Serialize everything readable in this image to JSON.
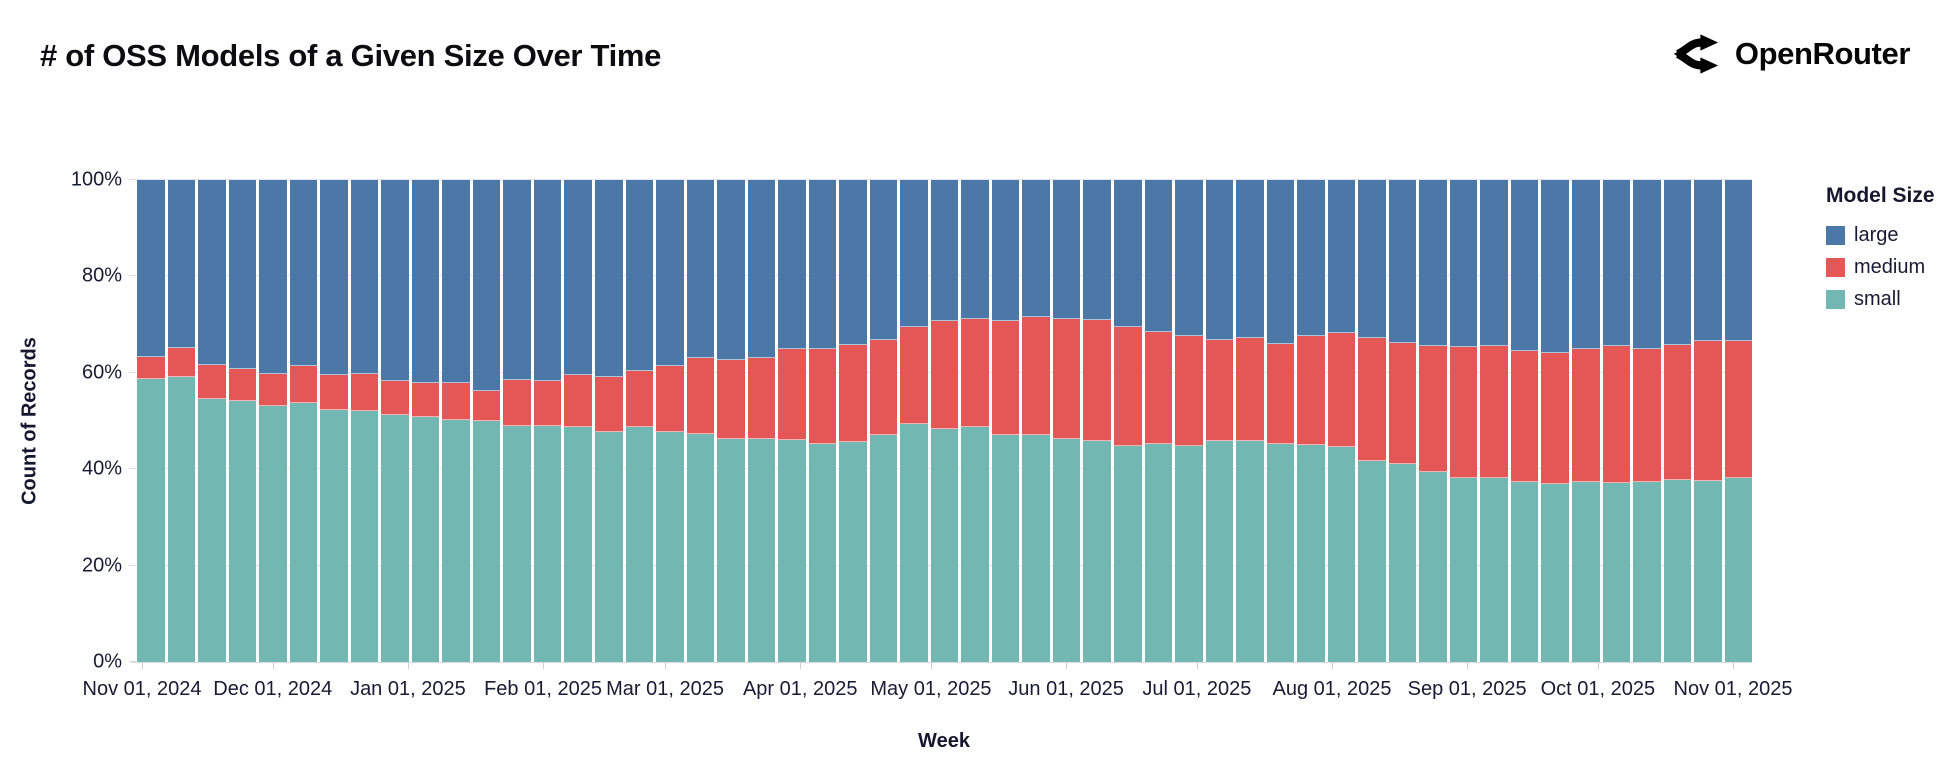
{
  "header": {
    "title": "# of OSS Models of a Given Size Over Time",
    "brand": "OpenRouter"
  },
  "chart_data": {
    "type": "bar",
    "stacked": true,
    "normalized_percent": true,
    "title": "# of OSS Models of a Given Size Over Time",
    "xlabel": "Week",
    "ylabel": "Count of Records",
    "ylim": [
      0,
      100
    ],
    "grid": true,
    "y_ticks": [
      {
        "label": "0%",
        "value": 0
      },
      {
        "label": "20%",
        "value": 20
      },
      {
        "label": "40%",
        "value": 40
      },
      {
        "label": "60%",
        "value": 60
      },
      {
        "label": "80%",
        "value": 80
      },
      {
        "label": "100%",
        "value": 100
      }
    ],
    "x_ticks": [
      {
        "label": "Nov 01, 2024",
        "day": 0
      },
      {
        "label": "Dec 01, 2024",
        "day": 30
      },
      {
        "label": "Jan 01, 2025",
        "day": 61
      },
      {
        "label": "Feb 01, 2025",
        "day": 92
      },
      {
        "label": "Mar 01, 2025",
        "day": 120
      },
      {
        "label": "Apr 01, 2025",
        "day": 151
      },
      {
        "label": "May 01, 2025",
        "day": 181
      },
      {
        "label": "Jun 01, 2025",
        "day": 212
      },
      {
        "label": "Jul 01, 2025",
        "day": 242
      },
      {
        "label": "Aug 01, 2025",
        "day": 273
      },
      {
        "label": "Sep 01, 2025",
        "day": 304
      },
      {
        "label": "Oct 01, 2025",
        "day": 334
      },
      {
        "label": "Nov 01, 2025",
        "day": 365
      }
    ],
    "legend": {
      "title": "Model Size",
      "position": "right",
      "entries": [
        {
          "label": "large",
          "color": "#4c78a8"
        },
        {
          "label": "medium",
          "color": "#e45756"
        },
        {
          "label": "small",
          "color": "#72b7b2"
        }
      ]
    },
    "categories": [
      "2024-10-27",
      "2024-11-03",
      "2024-11-10",
      "2024-11-17",
      "2024-11-24",
      "2024-12-01",
      "2024-12-08",
      "2024-12-15",
      "2024-12-22",
      "2024-12-29",
      "2025-01-05",
      "2025-01-12",
      "2025-01-19",
      "2025-01-26",
      "2025-02-02",
      "2025-02-09",
      "2025-02-16",
      "2025-02-23",
      "2025-03-02",
      "2025-03-09",
      "2025-03-16",
      "2025-03-23",
      "2025-03-30",
      "2025-04-06",
      "2025-04-13",
      "2025-04-20",
      "2025-04-27",
      "2025-05-04",
      "2025-05-11",
      "2025-05-18",
      "2025-05-25",
      "2025-06-01",
      "2025-06-08",
      "2025-06-15",
      "2025-06-22",
      "2025-06-29",
      "2025-07-06",
      "2025-07-13",
      "2025-07-20",
      "2025-07-27",
      "2025-08-03",
      "2025-08-10",
      "2025-08-17",
      "2025-08-24",
      "2025-08-31",
      "2025-09-07",
      "2025-09-14",
      "2025-09-21",
      "2025-09-28",
      "2025-10-05",
      "2025-10-12",
      "2025-10-19",
      "2025-10-26"
    ],
    "series": [
      {
        "name": "small",
        "color": "#72b7b2",
        "values": [
          58.7,
          59.1,
          54.6,
          54.1,
          53.1,
          53.7,
          52.3,
          52.1,
          51.2,
          50.8,
          50.3,
          49.9,
          49.0,
          49.0,
          48.8,
          47.8,
          48.8,
          47.8,
          47.3,
          46.3,
          46.3,
          46.1,
          45.2,
          45.6,
          47.0,
          49.3,
          48.3,
          48.8,
          47.1,
          47.1,
          46.2,
          45.9,
          44.9,
          45.2,
          44.9,
          45.9,
          45.9,
          45.2,
          45.1,
          44.5,
          41.6,
          41.0,
          39.4,
          38.2,
          38.1,
          37.3,
          36.9,
          37.3,
          37.2,
          37.3,
          37.8,
          37.6,
          38.1
        ]
      },
      {
        "name": "medium",
        "color": "#e45756",
        "values": [
          4.5,
          6.0,
          7.0,
          6.6,
          6.7,
          7.7,
          7.2,
          7.6,
          7.2,
          7.0,
          7.5,
          6.3,
          9.5,
          9.3,
          10.7,
          11.4,
          11.6,
          13.6,
          15.7,
          16.4,
          16.7,
          18.8,
          19.7,
          20.1,
          19.9,
          20.3,
          22.4,
          22.4,
          23.7,
          24.4,
          25.0,
          25.1,
          24.5,
          23.3,
          22.8,
          20.9,
          21.3,
          20.8,
          22.6,
          23.8,
          25.6,
          25.1,
          26.2,
          27.2,
          27.5,
          27.3,
          27.3,
          27.6,
          28.4,
          27.6,
          28.0,
          29.1,
          28.4
        ]
      },
      {
        "name": "large",
        "color": "#4c78a8",
        "values": [
          36.8,
          34.9,
          38.4,
          39.3,
          40.2,
          38.6,
          40.5,
          40.3,
          41.6,
          42.2,
          42.2,
          43.8,
          41.5,
          41.7,
          40.5,
          40.8,
          39.6,
          38.6,
          37.0,
          37.3,
          37.0,
          35.1,
          35.1,
          34.3,
          33.1,
          30.4,
          29.3,
          28.8,
          29.2,
          28.5,
          28.8,
          29.0,
          30.6,
          31.5,
          32.3,
          33.2,
          32.8,
          34.0,
          32.3,
          31.7,
          32.8,
          33.9,
          34.4,
          34.6,
          34.4,
          35.4,
          35.8,
          35.1,
          34.4,
          35.1,
          34.2,
          33.3,
          33.5
        ]
      }
    ]
  }
}
